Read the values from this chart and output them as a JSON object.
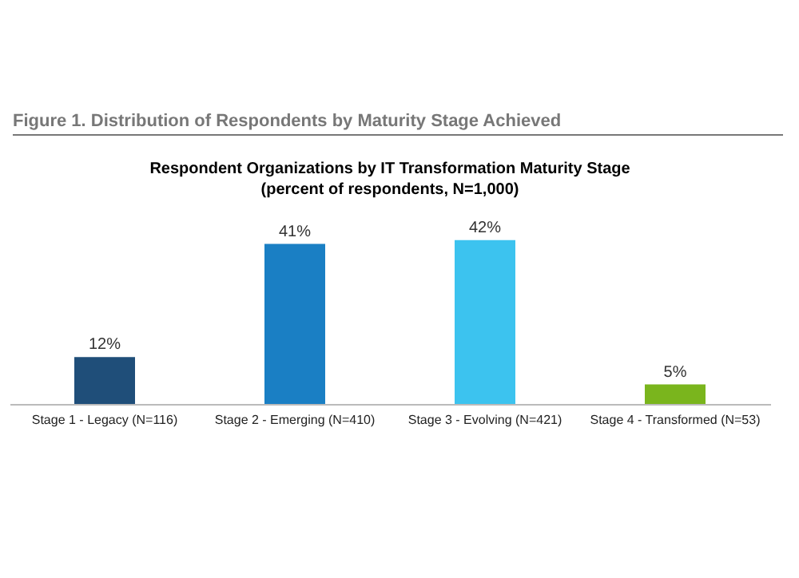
{
  "chart_data": {
    "type": "bar",
    "title": "Respondent Organizations by IT Transformation Maturity Stage",
    "subtitle": "(percent of respondents, N=1,000)",
    "annotations": [
      "Figure 1. Distribution of Respondents by Maturity Stage Achieved"
    ],
    "categories": [
      "Stage 1 - Legacy (N=116)",
      "Stage 2 - Emerging (N=410)",
      "Stage 3 - Evolving (N=421)",
      "Stage 4 - Transformed (N=53)"
    ],
    "values": [
      12,
      41,
      42,
      5
    ],
    "colors": [
      "#1f4e79",
      "#1a7fc4",
      "#3cc3ef",
      "#7ab51d"
    ],
    "value_labels": [
      "12%",
      "41%",
      "42%",
      "5%"
    ],
    "grid": false,
    "legend": false
  }
}
